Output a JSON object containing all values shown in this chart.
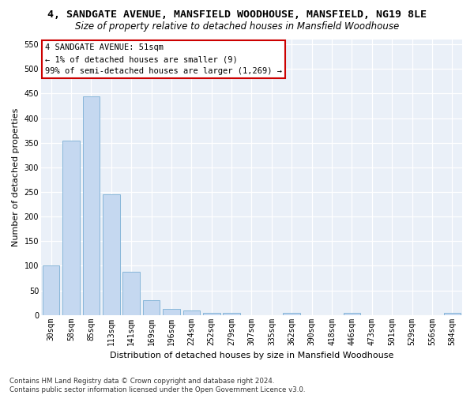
{
  "title_line1": "4, SANDGATE AVENUE, MANSFIELD WOODHOUSE, MANSFIELD, NG19 8LE",
  "title_line2": "Size of property relative to detached houses in Mansfield Woodhouse",
  "xlabel": "Distribution of detached houses by size in Mansfield Woodhouse",
  "ylabel": "Number of detached properties",
  "footnote": "Contains HM Land Registry data © Crown copyright and database right 2024.\nContains public sector information licensed under the Open Government Licence v3.0.",
  "annotation_title": "4 SANDGATE AVENUE: 51sqm",
  "annotation_line2": "← 1% of detached houses are smaller (9)",
  "annotation_line3": "99% of semi-detached houses are larger (1,269) →",
  "bar_labels": [
    "30sqm",
    "58sqm",
    "85sqm",
    "113sqm",
    "141sqm",
    "169sqm",
    "196sqm",
    "224sqm",
    "252sqm",
    "279sqm",
    "307sqm",
    "335sqm",
    "362sqm",
    "390sqm",
    "418sqm",
    "446sqm",
    "473sqm",
    "501sqm",
    "529sqm",
    "556sqm",
    "584sqm"
  ],
  "bar_values": [
    100,
    355,
    445,
    245,
    88,
    30,
    13,
    9,
    5,
    5,
    0,
    0,
    5,
    0,
    0,
    5,
    0,
    0,
    0,
    0,
    5
  ],
  "bar_color": "#c5d8f0",
  "bar_edge_color": "#7aafd4",
  "ylim": [
    0,
    560
  ],
  "yticks": [
    0,
    50,
    100,
    150,
    200,
    250,
    300,
    350,
    400,
    450,
    500,
    550
  ],
  "bg_color": "#ffffff",
  "plot_bg_color": "#eaf0f8",
  "annotation_box_facecolor": "#ffffff",
  "annotation_box_edgecolor": "#cc0000",
  "title_fontsize": 9.5,
  "subtitle_fontsize": 8.5,
  "axis_label_fontsize": 8,
  "tick_fontsize": 7,
  "annotation_fontsize": 7.5
}
